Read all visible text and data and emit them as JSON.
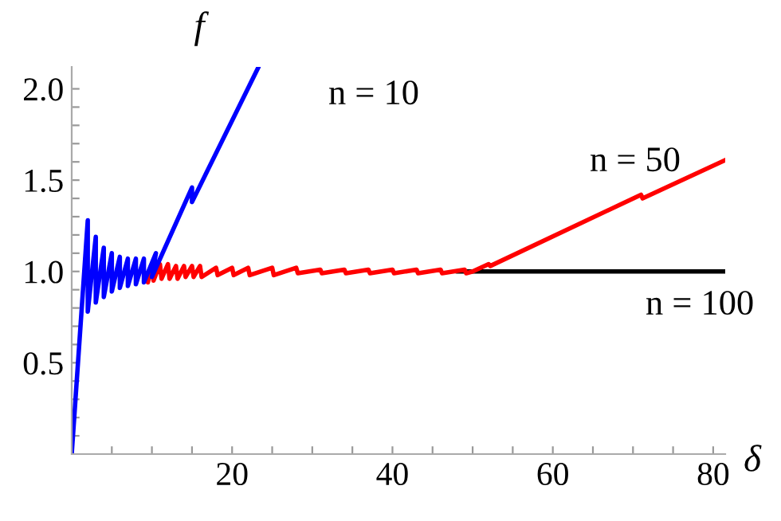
{
  "chart_data": {
    "type": "line",
    "xlabel": "δ",
    "ylabel": "f",
    "xlim": [
      0,
      81.5
    ],
    "ylim": [
      0,
      2.12
    ],
    "xticks": [
      {
        "value": 5,
        "label": null
      },
      {
        "value": 10,
        "label": null
      },
      {
        "value": 15,
        "label": null
      },
      20,
      {
        "value": 25,
        "label": null
      },
      {
        "value": 30,
        "label": null
      },
      {
        "value": 35,
        "label": null
      },
      40,
      {
        "value": 45,
        "label": null
      },
      {
        "value": 50,
        "label": null
      },
      {
        "value": 55,
        "label": null
      },
      60,
      {
        "value": 65,
        "label": null
      },
      {
        "value": 70,
        "label": null
      },
      {
        "value": 75,
        "label": null
      },
      80
    ],
    "yticks": [
      {
        "value": 0.1,
        "label": null
      },
      {
        "value": 0.2,
        "label": null
      },
      {
        "value": 0.3,
        "label": null
      },
      {
        "value": 0.4,
        "label": null
      },
      0.5,
      {
        "value": 0.6,
        "label": null
      },
      {
        "value": 0.7,
        "label": null
      },
      {
        "value": 0.8,
        "label": null
      },
      {
        "value": 0.9,
        "label": null
      },
      {
        "value": 1.0,
        "label": "1.0"
      },
      {
        "value": 1.1,
        "label": null
      },
      {
        "value": 1.2,
        "label": null
      },
      {
        "value": 1.3,
        "label": null
      },
      {
        "value": 1.4,
        "label": null
      },
      1.5,
      {
        "value": 1.6,
        "label": null
      },
      {
        "value": 1.7,
        "label": null
      },
      {
        "value": 1.8,
        "label": null
      },
      {
        "value": 1.9,
        "label": null
      },
      {
        "value": 2.0,
        "label": "2.0"
      }
    ],
    "grid": false,
    "legend": false,
    "marker": "none",
    "line_style": "solid",
    "series": [
      {
        "color": "#000000",
        "x": [
          48,
          81.5
        ],
        "values": [
          1.0,
          1.0
        ]
      },
      {
        "color": "#ff0000",
        "x": [
          9.5,
          10,
          10.2,
          11,
          11.2,
          12,
          12.2,
          13,
          13.2,
          14,
          14.2,
          15,
          15.2,
          16,
          16.2,
          18,
          18.2,
          20,
          20.2,
          22,
          22.2,
          25,
          25.2,
          28,
          28.2,
          31,
          31.2,
          34,
          34.2,
          37,
          37.2,
          40,
          40.2,
          43,
          43.2,
          46,
          46.2,
          49,
          49.2,
          50,
          52,
          52.2,
          71,
          71.2,
          81.5
        ],
        "values": [
          0.94,
          1.04,
          0.95,
          1.04,
          0.96,
          1.04,
          0.96,
          1.03,
          0.96,
          1.03,
          0.97,
          1.03,
          0.97,
          1.03,
          0.97,
          1.02,
          0.98,
          1.02,
          0.98,
          1.02,
          0.98,
          1.02,
          0.98,
          1.02,
          0.99,
          1.01,
          0.99,
          1.01,
          0.99,
          1.01,
          0.99,
          1.01,
          0.99,
          1.01,
          0.99,
          1.01,
          0.99,
          1.01,
          0.99,
          1.0,
          1.04,
          1.03,
          1.42,
          1.4,
          1.61
        ]
      },
      {
        "color": "#0000ff",
        "x": [
          0,
          2,
          2,
          3,
          3,
          4,
          4,
          5,
          5,
          6,
          6,
          7,
          7,
          8,
          8,
          9,
          9,
          10.5,
          10,
          15,
          15,
          23.3
        ],
        "values": [
          0,
          1.28,
          0.78,
          1.19,
          0.83,
          1.13,
          0.86,
          1.1,
          0.89,
          1.08,
          0.91,
          1.07,
          0.92,
          1.07,
          0.93,
          1.07,
          0.94,
          1.1,
          0.97,
          1.46,
          1.38,
          2.12
        ]
      }
    ],
    "annotations": [
      "n = 10",
      "n = 50",
      "n = 100"
    ]
  }
}
